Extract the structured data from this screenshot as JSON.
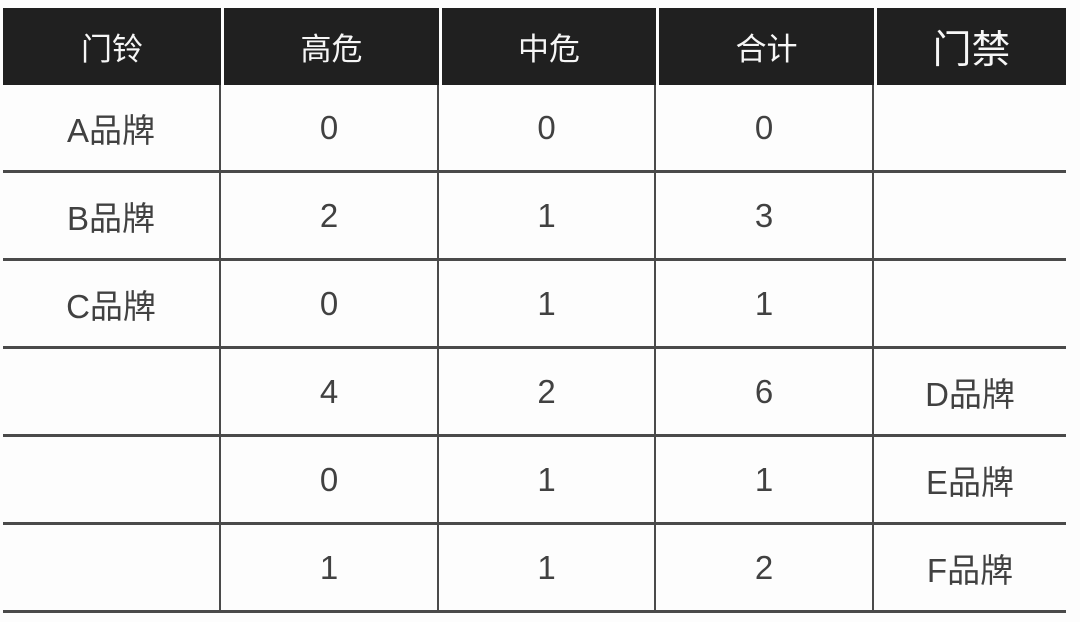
{
  "chart_data": {
    "type": "table",
    "columns": [
      "门铃",
      "高危",
      "中危",
      "合计",
      "门禁"
    ],
    "rows": [
      [
        "A品牌",
        "0",
        "0",
        "0",
        ""
      ],
      [
        "B品牌",
        "2",
        "1",
        "3",
        ""
      ],
      [
        "C品牌",
        "0",
        "1",
        "1",
        ""
      ],
      [
        "",
        "4",
        "2",
        "6",
        "D品牌"
      ],
      [
        "",
        "0",
        "1",
        "1",
        "E品牌"
      ],
      [
        "",
        "1",
        "1",
        "2",
        "F品牌"
      ]
    ],
    "layout": {
      "header_style": "black-background-white-text",
      "grid": "horizontal-and-vertical-inner-lines",
      "outer_side_borders": "none"
    }
  },
  "colors": {
    "page_bg": "#fdfdfd",
    "header_bg": "#202020",
    "header_text": "#f6f6f6",
    "body_text": "#414141",
    "grid_line": "#4a4a4a"
  }
}
